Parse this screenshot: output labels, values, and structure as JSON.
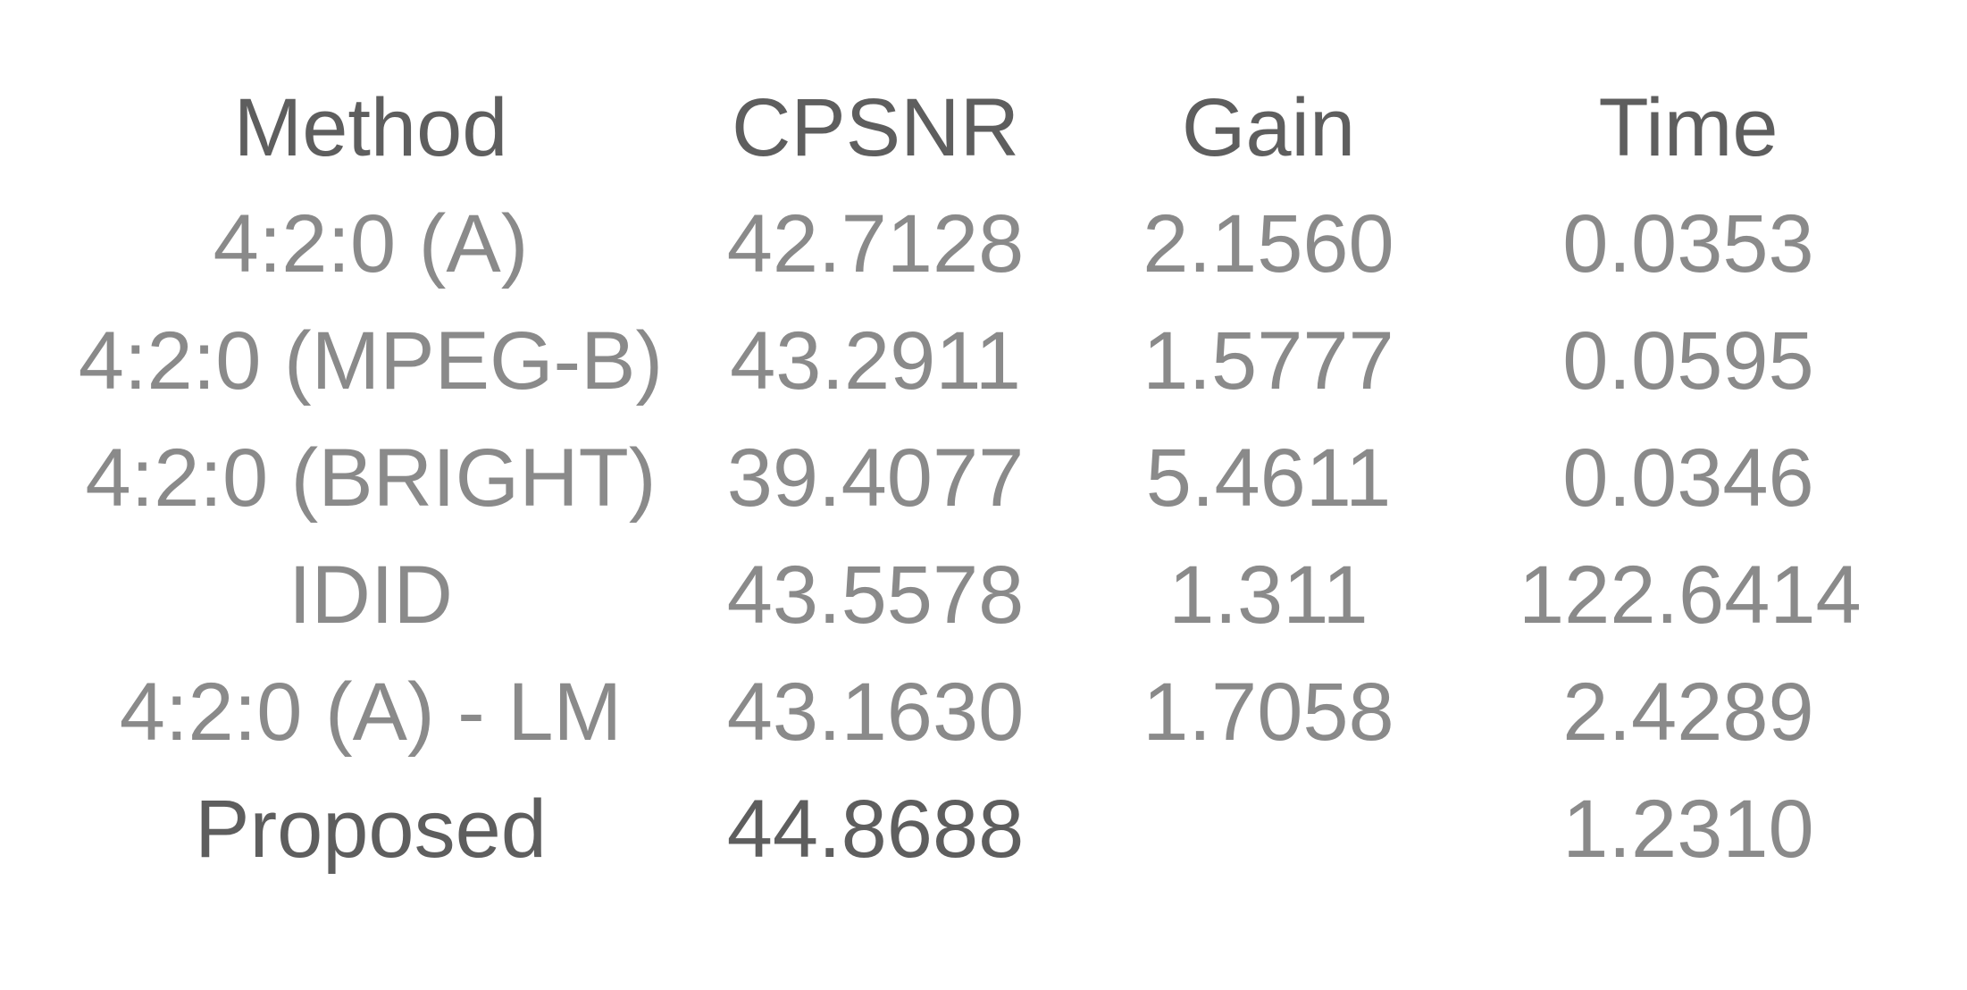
{
  "table": {
    "headers": [
      "Method",
      "CPSNR",
      "Gain",
      "Time"
    ],
    "rows": [
      [
        "4:2:0 (A)",
        "42.7128",
        "2.1560",
        "0.0353"
      ],
      [
        "4:2:0 (MPEG-B)",
        "43.2911",
        "1.5777",
        "0.0595"
      ],
      [
        "4:2:0 (BRIGHT)",
        "39.4077",
        "5.4611",
        "0.0346"
      ],
      [
        "IDID",
        "43.5578",
        "1.311",
        "122.6414"
      ],
      [
        "4:2:0 (A) - LM",
        "43.1630",
        "1.7058",
        "2.4289"
      ],
      [
        "Proposed",
        "44.8688",
        "",
        "1.2310"
      ]
    ]
  }
}
